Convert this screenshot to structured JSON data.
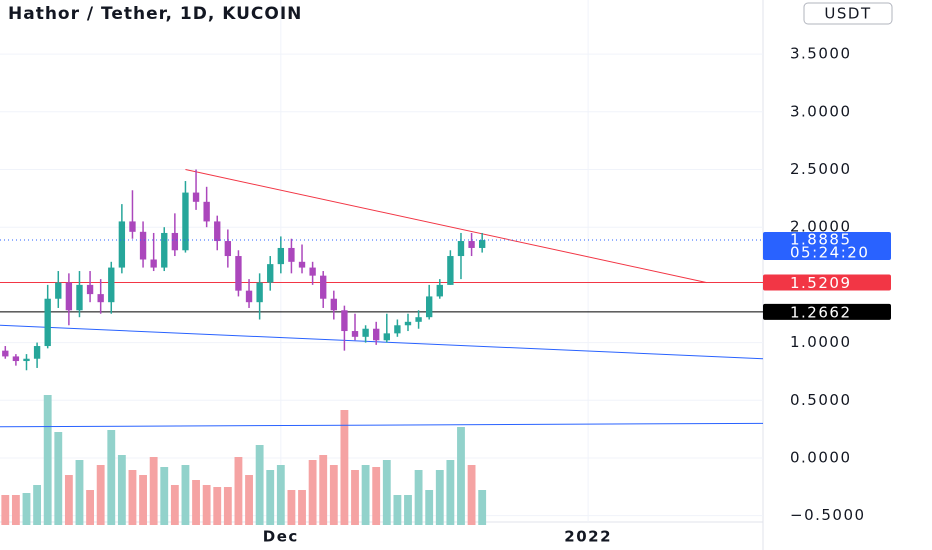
{
  "chart_data": {
    "type": "candlestick",
    "title": "Hathor / Tether, 1D, KUCOIN",
    "currency": "USDT",
    "countdown": "05:24:20",
    "last_price": 1.8885,
    "up_color": "#26a69a",
    "down_color": "#ab47bc",
    "volume_up_color": "#92d2cb",
    "volume_down_color": "#f5a3a3",
    "xlim": [
      -0.5,
      71.5
    ],
    "xticks": [
      {
        "value": 26,
        "label": "Dec"
      },
      {
        "value": 55,
        "label": "2022"
      }
    ],
    "ylim": [
      -0.555,
      3.969
    ],
    "yticks": [
      {
        "value": 3.5,
        "label": "3.5000"
      },
      {
        "value": 3.0,
        "label": "3.0000"
      },
      {
        "value": 2.5,
        "label": "2.5000"
      },
      {
        "value": 2.0,
        "label": "2.0000"
      },
      {
        "value": 1.0,
        "label": "1.0000"
      },
      {
        "value": 0.5,
        "label": "0.5000"
      },
      {
        "value": 0.0,
        "label": "0.0000"
      },
      {
        "value": -0.5,
        "label": "−0.5000"
      }
    ],
    "grid": true,
    "volume_ylim": [
      0,
      150
    ],
    "open": [
      0.93,
      0.88,
      0.84,
      0.86,
      0.97,
      1.38,
      1.52,
      1.28,
      1.5,
      1.42,
      1.35,
      1.65,
      2.05,
      1.96,
      1.72,
      1.65,
      1.95,
      1.8,
      2.3,
      2.22,
      2.05,
      1.88,
      1.75,
      1.45,
      1.35,
      1.52,
      1.68,
      1.82,
      1.7,
      1.65,
      1.58,
      1.38,
      1.28,
      1.1,
      1.05,
      1.12,
      1.02,
      1.08,
      1.15,
      1.18,
      1.22,
      1.4,
      1.5,
      1.75,
      1.88,
      1.82
    ],
    "high": [
      0.97,
      0.9,
      0.9,
      1.0,
      1.5,
      1.62,
      1.6,
      1.62,
      1.62,
      1.55,
      1.7,
      2.2,
      2.32,
      2.05,
      1.95,
      2.0,
      2.12,
      2.4,
      2.5,
      2.35,
      2.1,
      1.98,
      1.8,
      1.55,
      1.6,
      1.75,
      1.92,
      1.9,
      1.85,
      1.7,
      1.62,
      1.45,
      1.32,
      1.25,
      1.15,
      1.18,
      1.25,
      1.2,
      1.25,
      1.28,
      1.5,
      1.55,
      1.8,
      1.95,
      1.95,
      1.95
    ],
    "low": [
      0.86,
      0.8,
      0.76,
      0.78,
      0.95,
      1.3,
      1.15,
      1.22,
      1.35,
      1.25,
      1.25,
      1.6,
      1.9,
      1.65,
      1.62,
      1.62,
      1.75,
      1.78,
      2.15,
      2.0,
      1.8,
      1.65,
      1.4,
      1.3,
      1.2,
      1.45,
      1.6,
      1.6,
      1.6,
      1.5,
      1.3,
      1.2,
      0.93,
      1.02,
      1.0,
      0.98,
      1.0,
      1.05,
      1.1,
      1.12,
      1.2,
      1.38,
      1.5,
      1.55,
      1.75,
      1.78
    ],
    "close": [
      0.88,
      0.84,
      0.86,
      0.97,
      1.38,
      1.52,
      1.28,
      1.5,
      1.42,
      1.35,
      1.65,
      2.05,
      1.96,
      1.72,
      1.65,
      1.95,
      1.8,
      2.3,
      2.22,
      2.05,
      1.88,
      1.75,
      1.45,
      1.35,
      1.52,
      1.68,
      1.82,
      1.7,
      1.65,
      1.58,
      1.38,
      1.28,
      1.1,
      1.05,
      1.12,
      1.02,
      1.08,
      1.15,
      1.18,
      1.22,
      1.4,
      1.5,
      1.75,
      1.88,
      1.82,
      1.8885
    ],
    "volume": [
      30,
      30,
      32,
      40,
      130,
      93,
      50,
      65,
      35,
      60,
      95,
      70,
      55,
      50,
      68,
      58,
      40,
      60,
      45,
      40,
      38,
      38,
      68,
      50,
      80,
      55,
      60,
      35,
      35,
      65,
      70,
      60,
      115,
      55,
      60,
      58,
      65,
      30,
      30,
      55,
      35,
      55,
      65,
      98,
      60,
      35
    ],
    "levels": [
      {
        "value": 1.5209,
        "color": "#f23645"
      },
      {
        "value": 1.2662,
        "color": "#000000"
      }
    ],
    "trend_lines": [
      {
        "color": "#f23645",
        "x": [
          17,
          66.2
        ],
        "y": [
          2.5,
          1.52
        ]
      },
      {
        "color": "#2962ff",
        "x": [
          -0.5,
          71.5
        ],
        "y": [
          1.15,
          0.86
        ]
      },
      {
        "color": "#2962ff",
        "x": [
          -0.5,
          71.5
        ],
        "y": [
          0.27,
          0.3
        ]
      }
    ]
  }
}
